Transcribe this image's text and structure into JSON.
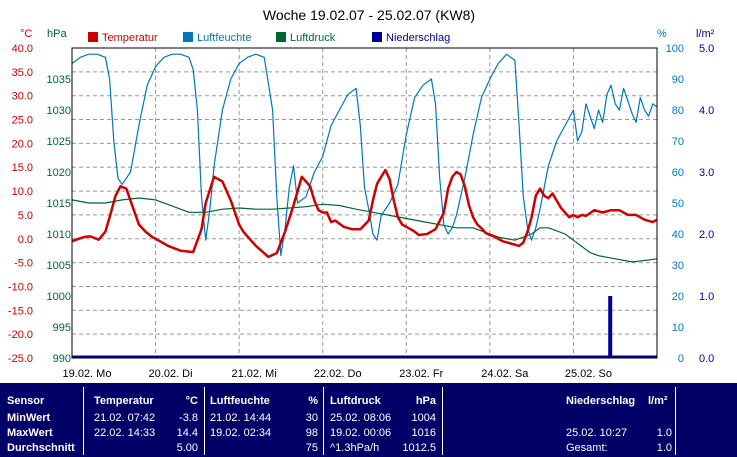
{
  "chart_data": {
    "type": "line",
    "title": "Woche 19.02.07 - 25.02.07 (KW8)",
    "x_range": [
      "19.02.07 00:00",
      "26.02.07 00:00"
    ],
    "x_ticks": [
      "19.02. Mo",
      "20.02. Di",
      "21.02. Mi",
      "22.02. Do",
      "23.02. Fr",
      "24.02. Sa",
      "25.02. So"
    ],
    "axes": {
      "temp": {
        "unit": "°C",
        "range": [
          -25,
          40
        ],
        "ticks": [
          "40.0",
          "35.0",
          "30.0",
          "25.0",
          "20.0",
          "15.0",
          "10.0",
          "5.0",
          "0.0",
          "-5.0",
          "-10.0",
          "-15.0",
          "-20.0",
          "-25.0"
        ],
        "color": "#cc0000"
      },
      "press": {
        "unit": "hPa",
        "range": [
          990,
          1040
        ],
        "ticks": [
          "1035",
          "1030",
          "1025",
          "1020",
          "1015",
          "1010",
          "1005",
          "1000",
          "995",
          "990"
        ],
        "color": "#006633"
      },
      "hum": {
        "unit": "%",
        "range": [
          0,
          100
        ],
        "ticks": [
          "100",
          "90",
          "80",
          "70",
          "60",
          "50",
          "40",
          "30",
          "20",
          "10",
          "0"
        ],
        "color": "#0077bb"
      },
      "rain": {
        "unit": "l/m²",
        "range": [
          0,
          5
        ],
        "ticks": [
          "5.0",
          "4.0",
          "3.0",
          "2.0",
          "1.0",
          "0.0"
        ],
        "color": "#000099"
      }
    },
    "grid": true,
    "legend_position": "top",
    "series": [
      {
        "name": "Temperatur",
        "axis": "temp",
        "color": "#cc0000",
        "x": [
          0,
          0.08,
          0.15,
          0.22,
          0.32,
          0.4,
          0.45,
          0.52,
          0.58,
          0.65,
          0.72,
          0.8,
          0.88,
          0.95,
          1.05,
          1.15,
          1.3,
          1.45,
          1.55,
          1.6,
          1.7,
          1.8,
          1.9,
          1.95,
          2,
          2.05,
          2.1,
          2.2,
          2.35,
          2.45,
          2.55,
          2.65,
          2.75,
          2.85,
          2.9,
          2.95,
          3,
          3.05,
          3.1,
          3.15,
          3.25,
          3.35,
          3.45,
          3.55,
          3.6,
          3.65,
          3.7,
          3.75,
          3.8,
          3.85,
          3.9,
          3.95,
          4,
          4.05,
          4.1,
          4.15,
          4.25,
          4.35,
          4.45,
          4.5,
          4.55,
          4.6,
          4.65,
          4.7,
          4.75,
          4.8,
          4.85,
          4.9,
          4.95,
          5,
          5.05,
          5.15,
          5.25,
          5.35,
          5.4,
          5.45,
          5.5,
          5.55,
          5.6,
          5.65,
          5.7,
          5.75,
          5.8,
          5.85,
          5.95,
          6,
          6.05,
          6.1,
          6.15,
          6.25,
          6.35,
          6.45,
          6.55,
          6.65,
          6.75,
          6.85,
          6.95,
          7
        ],
        "y": [
          -0.5,
          0,
          0.4,
          0.5,
          -0.2,
          1.5,
          4.5,
          9,
          11,
          10.5,
          7,
          3,
          1.5,
          0.5,
          -0.5,
          -1.5,
          -2.5,
          -2.8,
          2,
          7.5,
          13,
          12,
          8,
          5.5,
          3,
          1.5,
          0.5,
          -1.5,
          -3.8,
          -3,
          1.5,
          7,
          13,
          11,
          8,
          6,
          5.5,
          5.5,
          3.5,
          3.8,
          2.5,
          2,
          2,
          3.8,
          8,
          11.5,
          13,
          14.4,
          12.5,
          8,
          4.5,
          3,
          2.5,
          2,
          1.5,
          0.8,
          1,
          2,
          5.5,
          10.5,
          13,
          14,
          13.5,
          11,
          7,
          4.5,
          3,
          2.2,
          1.2,
          0.8,
          0.5,
          -0.5,
          -1,
          -1.5,
          -0.8,
          1.5,
          4.5,
          9,
          10.5,
          9,
          8.5,
          9.5,
          8,
          6.5,
          4.5,
          5,
          4.5,
          5,
          4.8,
          6,
          5.5,
          6,
          6,
          5,
          5,
          4,
          3.5,
          4
        ]
      },
      {
        "name": "Luftfeuchte",
        "axis": "hum",
        "color": "#0077bb",
        "x": [
          0,
          0.1,
          0.2,
          0.3,
          0.4,
          0.45,
          0.5,
          0.55,
          0.6,
          0.7,
          0.8,
          0.9,
          1,
          1.1,
          1.2,
          1.3,
          1.4,
          1.45,
          1.5,
          1.55,
          1.6,
          1.65,
          1.7,
          1.8,
          1.9,
          2,
          2.1,
          2.2,
          2.3,
          2.4,
          2.45,
          2.5,
          2.55,
          2.6,
          2.65,
          2.7,
          2.8,
          2.9,
          3,
          3.05,
          3.1,
          3.2,
          3.3,
          3.4,
          3.45,
          3.5,
          3.55,
          3.6,
          3.65,
          3.7,
          3.8,
          3.9,
          4,
          4.1,
          4.2,
          4.3,
          4.35,
          4.4,
          4.45,
          4.5,
          4.55,
          4.6,
          4.7,
          4.8,
          4.9,
          5,
          5.1,
          5.2,
          5.3,
          5.35,
          5.4,
          5.45,
          5.5,
          5.55,
          5.6,
          5.65,
          5.7,
          5.8,
          5.9,
          6,
          6.05,
          6.1,
          6.15,
          6.2,
          6.25,
          6.3,
          6.35,
          6.4,
          6.45,
          6.5,
          6.55,
          6.6,
          6.65,
          6.7,
          6.75,
          6.8,
          6.85,
          6.9,
          6.95,
          7
        ],
        "y": [
          95,
          97,
          98,
          98,
          97,
          90,
          70,
          58,
          56,
          60,
          75,
          88,
          94,
          97,
          98,
          98,
          97,
          93,
          80,
          52,
          38,
          48,
          62,
          80,
          90,
          95,
          97,
          98,
          97,
          80,
          52,
          33,
          42,
          55,
          62,
          50,
          52,
          60,
          65,
          70,
          75,
          80,
          85,
          87,
          75,
          55,
          48,
          40,
          38,
          46,
          50,
          56,
          72,
          84,
          88,
          90,
          82,
          58,
          43,
          40,
          42,
          46,
          58,
          72,
          84,
          90,
          95,
          98,
          96,
          75,
          52,
          42,
          38,
          42,
          48,
          55,
          62,
          70,
          75,
          80,
          70,
          73,
          82,
          78,
          74,
          80,
          76,
          85,
          88,
          82,
          80,
          87,
          83,
          79,
          76,
          84,
          80,
          78,
          82,
          81
        ]
      },
      {
        "name": "Luftdruck",
        "axis": "press",
        "color": "#006633",
        "x": [
          0,
          0.2,
          0.4,
          0.6,
          0.8,
          1,
          1.2,
          1.4,
          1.6,
          1.8,
          2,
          2.2,
          2.4,
          2.6,
          2.8,
          3,
          3.2,
          3.4,
          3.6,
          3.8,
          4,
          4.2,
          4.4,
          4.6,
          4.8,
          5,
          5.1,
          5.3,
          5.5,
          5.6,
          5.7,
          5.9,
          6,
          6.2,
          6.3,
          6.5,
          6.7,
          6.9,
          7
        ],
        "y": [
          1015.5,
          1015,
          1015,
          1015.5,
          1015.8,
          1015.5,
          1014.5,
          1013.5,
          1013.5,
          1014,
          1014.2,
          1014,
          1014,
          1014.2,
          1014.4,
          1014.8,
          1014.6,
          1014,
          1013.5,
          1013,
          1012.5,
          1012,
          1011.5,
          1011,
          1011,
          1010,
          1009.5,
          1009,
          1010,
          1011,
          1011,
          1010,
          1009,
          1007,
          1006.5,
          1006,
          1005.5,
          1005.8,
          1006
        ]
      },
      {
        "name": "Niederschlag",
        "axis": "rain",
        "color": "#000099",
        "x": [
          6.44
        ],
        "y": [
          1.0
        ]
      }
    ]
  },
  "stats": {
    "header": {
      "sensor": "Sensor",
      "temp": "Temperatur",
      "temp_unit": "°C",
      "hum": "Luftfeuchte",
      "hum_unit": "%",
      "press": "Luftdruck",
      "press_unit": "hPa",
      "rain": "Niederschlag",
      "rain_unit": "l/m²"
    },
    "rows": [
      {
        "label": "MinWert",
        "temp_time": "21.02.  07:42",
        "temp_val": "-3.8",
        "hum_time": "21.02.  14:44",
        "hum_val": "30",
        "press_time": "25.02.  08:06",
        "press_val": "1004",
        "rain_time": "",
        "rain_val": ""
      },
      {
        "label": "MaxWert",
        "temp_time": "22.02.  14:33",
        "temp_val": "14.4",
        "hum_time": "19.02.  02:34",
        "hum_val": "98",
        "press_time": "19.02.  00:06",
        "press_val": "1016",
        "rain_time": "25.02.  10:27",
        "rain_val": "1.0"
      },
      {
        "label": "Durchschnitt",
        "temp_time": "",
        "temp_val": "5.00",
        "hum_time": "",
        "hum_val": "75",
        "press_time": "^1.3hPa/h",
        "press_val": "1012.5",
        "rain_time": "Gesamt:",
        "rain_val": "1.0"
      }
    ]
  }
}
